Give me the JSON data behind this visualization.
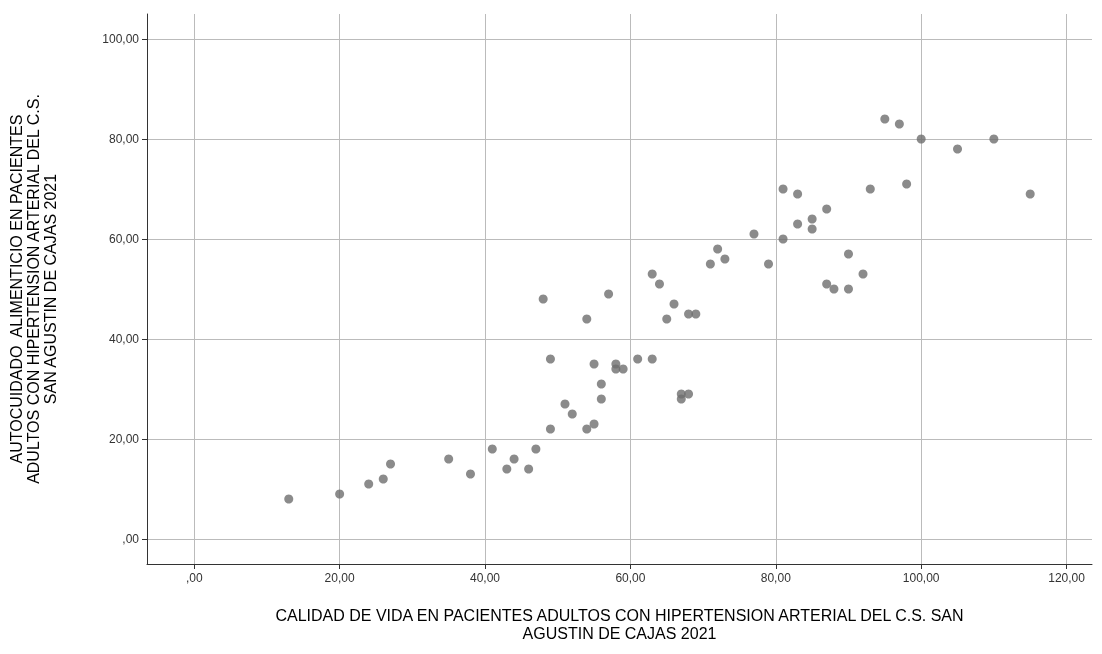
{
  "chart_data": {
    "type": "scatter",
    "xlabel": "CALIDAD DE VIDA EN PACIENTES ADULTOS CON HIPERTENSION ARTERIAL DEL C.S. SAN\nAGUSTIN DE CAJAS 2021",
    "ylabel": "AUTOCUIDADO  ALIMENTICIO EN PACIENTES\nADULTOS CON HIPERTENSION ARTERIAL DEL C.S.\nSAN AGUSTIN DE CAJAS 2021",
    "xlim": [
      -6.5,
      123.5
    ],
    "ylim": [
      -5,
      105
    ],
    "xticks": [
      {
        "value": 0,
        "label": ",00"
      },
      {
        "value": 20,
        "label": "20,00"
      },
      {
        "value": 40,
        "label": "40,00"
      },
      {
        "value": 60,
        "label": "60,00"
      },
      {
        "value": 80,
        "label": "80,00"
      },
      {
        "value": 100,
        "label": "100,00"
      },
      {
        "value": 120,
        "label": "120,00"
      }
    ],
    "yticks": [
      {
        "value": 0,
        "label": ",00"
      },
      {
        "value": 20,
        "label": "20,00"
      },
      {
        "value": 40,
        "label": "40,00"
      },
      {
        "value": 60,
        "label": "60,00"
      },
      {
        "value": 80,
        "label": "80,00"
      },
      {
        "value": 100,
        "label": "100,00"
      }
    ],
    "grid": true,
    "marker": "circle",
    "series": [
      {
        "color": "#6e6e6e",
        "x": [
          13,
          20,
          24,
          26,
          27,
          35,
          38,
          41,
          43,
          44,
          46,
          47,
          48,
          49,
          49,
          51,
          52,
          54,
          54,
          55,
          55,
          56,
          56,
          57,
          58,
          58,
          59,
          61,
          63,
          63,
          64,
          65,
          66,
          67,
          67,
          68,
          68,
          69,
          71,
          72,
          73,
          77,
          79,
          81,
          81,
          83,
          83,
          85,
          85,
          87,
          87,
          88,
          90,
          90,
          92,
          93,
          95,
          97,
          98,
          100,
          105,
          110,
          115
        ],
        "values": [
          8,
          9,
          11,
          12,
          15,
          16,
          13,
          18,
          14,
          16,
          14,
          18,
          48,
          22,
          36,
          27,
          25,
          44,
          22,
          23,
          35,
          31,
          28,
          49,
          35,
          34,
          34,
          36,
          53,
          36,
          51,
          44,
          47,
          29,
          28,
          29,
          45,
          45,
          55,
          58,
          56,
          61,
          55,
          70,
          60,
          69,
          63,
          64,
          62,
          66,
          51,
          50,
          57,
          50,
          53,
          70,
          84,
          83,
          71,
          80,
          78,
          80,
          69
        ]
      }
    ]
  }
}
